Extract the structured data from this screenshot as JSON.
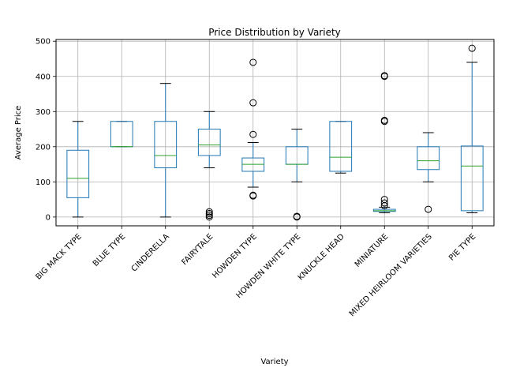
{
  "chart_data": {
    "type": "box",
    "title": "Price Distribution by Variety",
    "xlabel": "Variety",
    "ylabel": "Average Price",
    "ylim": [
      -25,
      505
    ],
    "yticks": [
      0,
      100,
      200,
      300,
      400,
      500
    ],
    "grid": true,
    "categories": [
      "BIG MACK TYPE",
      "BLUE TYPE",
      "CINDERELLA",
      "FAIRYTALE",
      "HOWDEN TYPE",
      "HOWDEN WHITE TYPE",
      "KNUCKLE HEAD",
      "MINIATURE",
      "MIXED HEIRLOOM VARIETIES",
      "PIE TYPE"
    ],
    "boxes": [
      {
        "whislo": 0,
        "q1": 55,
        "med": 110,
        "q3": 190,
        "whishi": 272,
        "fliers": []
      },
      {
        "whislo": 200,
        "q1": 200,
        "med": 200,
        "q3": 272,
        "whishi": 272,
        "fliers": []
      },
      {
        "whislo": 0,
        "q1": 140,
        "med": 175,
        "q3": 272,
        "whishi": 380,
        "fliers": []
      },
      {
        "whislo": 140,
        "q1": 175,
        "med": 205,
        "q3": 250,
        "whishi": 300,
        "fliers": [
          0,
          5,
          10,
          15
        ]
      },
      {
        "whislo": 85,
        "q1": 130,
        "med": 150,
        "q3": 168,
        "whishi": 212,
        "fliers": [
          440,
          325,
          235,
          60,
          62
        ]
      },
      {
        "whislo": 100,
        "q1": 150,
        "med": 150,
        "q3": 200,
        "whishi": 250,
        "fliers": [
          0,
          2
        ]
      },
      {
        "whislo": 125,
        "q1": 130,
        "med": 170,
        "q3": 272,
        "whishi": 272,
        "fliers": []
      },
      {
        "whislo": 12,
        "q1": 16,
        "med": 18,
        "q3": 22,
        "whishi": 28,
        "fliers": [
          400,
          402,
          272,
          275,
          50,
          40,
          32
        ]
      },
      {
        "whislo": 100,
        "q1": 135,
        "med": 160,
        "q3": 200,
        "whishi": 240,
        "fliers": [
          22
        ]
      },
      {
        "whislo": 12,
        "q1": 18,
        "med": 145,
        "q3": 202,
        "whishi": 440,
        "fliers": [
          480
        ]
      }
    ],
    "colors": {
      "box": "#1f77b4",
      "median": "#2ca02c",
      "grid": "#b0b0b0"
    }
  }
}
